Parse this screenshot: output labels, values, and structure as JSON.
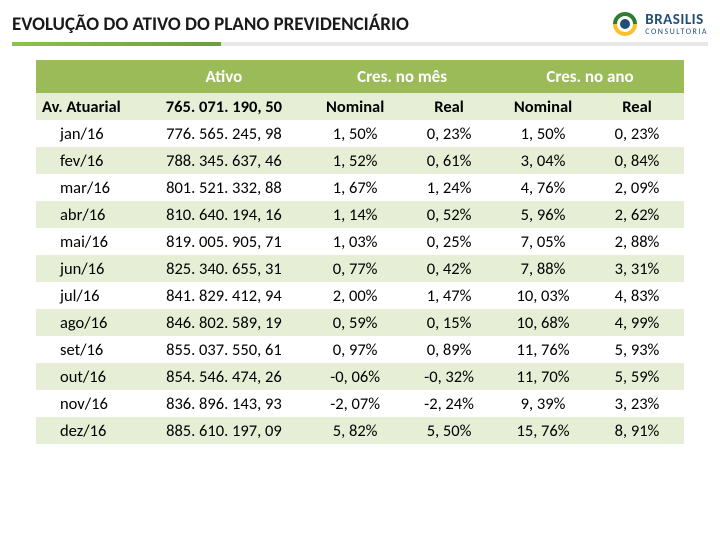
{
  "title": "EVOLUÇÃO DO ATIVO DO PLANO PREVIDENCIÁRIO",
  "logo": {
    "main": "BRASILIS",
    "sub": "CONSULTORIA"
  },
  "table": {
    "group_headers": [
      "",
      "Ativo",
      "Cres. no mês",
      "Cres. no ano"
    ],
    "sub_headers": [
      "Av. Atuarial",
      "765. 071. 190, 50",
      "Nominal",
      "Real",
      "Nominal",
      "Real"
    ],
    "rows": [
      [
        "jan/16",
        "776. 565. 245, 98",
        "1, 50%",
        "0, 23%",
        "1, 50%",
        "0, 23%"
      ],
      [
        "fev/16",
        "788. 345. 637, 46",
        "1, 52%",
        "0, 61%",
        "3, 04%",
        "0, 84%"
      ],
      [
        "mar/16",
        "801. 521. 332, 88",
        "1, 67%",
        "1, 24%",
        "4, 76%",
        "2, 09%"
      ],
      [
        "abr/16",
        "810. 640. 194, 16",
        "1, 14%",
        "0, 52%",
        "5, 96%",
        "2, 62%"
      ],
      [
        "mai/16",
        "819. 005. 905, 71",
        "1, 03%",
        "0, 25%",
        "7, 05%",
        "2, 88%"
      ],
      [
        "jun/16",
        "825. 340. 655, 31",
        "0, 77%",
        "0, 42%",
        "7, 88%",
        "3, 31%"
      ],
      [
        "jul/16",
        "841. 829. 412, 94",
        "2, 00%",
        "1, 47%",
        "10, 03%",
        "4, 83%"
      ],
      [
        "ago/16",
        "846. 802. 589, 19",
        "0, 59%",
        "0, 15%",
        "10, 68%",
        "4, 99%"
      ],
      [
        "set/16",
        "855. 037. 550, 61",
        "0, 97%",
        "0, 89%",
        "11, 76%",
        "5, 93%"
      ],
      [
        "out/16",
        "854. 546. 474, 26",
        "-0, 06%",
        "-0, 32%",
        "11, 70%",
        "5, 59%"
      ],
      [
        "nov/16",
        "836. 896. 143, 93",
        "-2, 07%",
        "-2, 24%",
        "9, 39%",
        "3, 23%"
      ],
      [
        "dez/16",
        "885. 610. 197, 09",
        "5, 82%",
        "5, 50%",
        "15, 76%",
        "8, 91%"
      ]
    ],
    "col_widths": [
      "16%",
      "26%",
      "14.5%",
      "14.5%",
      "14.5%",
      "14.5%"
    ],
    "header_bg": "#9bbb59",
    "header_color": "#ffffff",
    "row_odd_bg": "#e6efd5",
    "row_even_bg": "#ffffff"
  }
}
